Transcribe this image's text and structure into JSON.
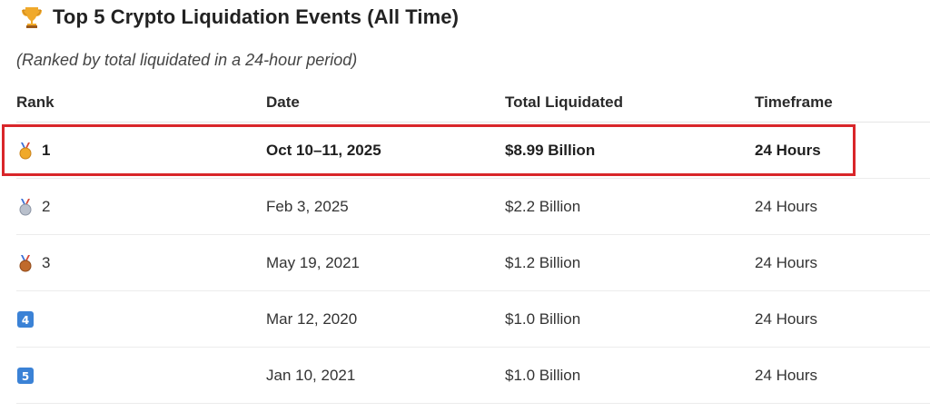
{
  "header": {
    "title": "Top 5 Crypto Liquidation Events (All Time)",
    "subtitle": "(Ranked by total liquidated in a 24-hour period)",
    "icon": "trophy-icon"
  },
  "table": {
    "columns": [
      "Rank",
      "Date",
      "Total Liquidated",
      "Timeframe"
    ],
    "rows": [
      {
        "icon": "gold-medal-icon",
        "rank": "1",
        "date": "Oct 10–11, 2025",
        "total": "$8.99 Billion",
        "timeframe": "24 Hours",
        "highlighted": true
      },
      {
        "icon": "silver-medal-icon",
        "rank": "2",
        "date": "Feb 3, 2025",
        "total": "$2.2 Billion",
        "timeframe": "24 Hours"
      },
      {
        "icon": "bronze-medal-icon",
        "rank": "3",
        "date": "May 19, 2021",
        "total": "$1.2 Billion",
        "timeframe": "24 Hours"
      },
      {
        "icon": "keycap-4-icon",
        "rank": "",
        "date": "Mar 12, 2020",
        "total": "$1.0 Billion",
        "timeframe": "24 Hours"
      },
      {
        "icon": "keycap-5-icon",
        "rank": "",
        "date": "Jan 10, 2021",
        "total": "$1.0 Billion",
        "timeframe": "24 Hours"
      }
    ]
  },
  "colors": {
    "highlight_border": "#d9262a",
    "keycap_blue": "#3b82d6",
    "gold": "#f0a92a",
    "silver": "#b9c0cc",
    "bronze": "#c06a2b"
  }
}
